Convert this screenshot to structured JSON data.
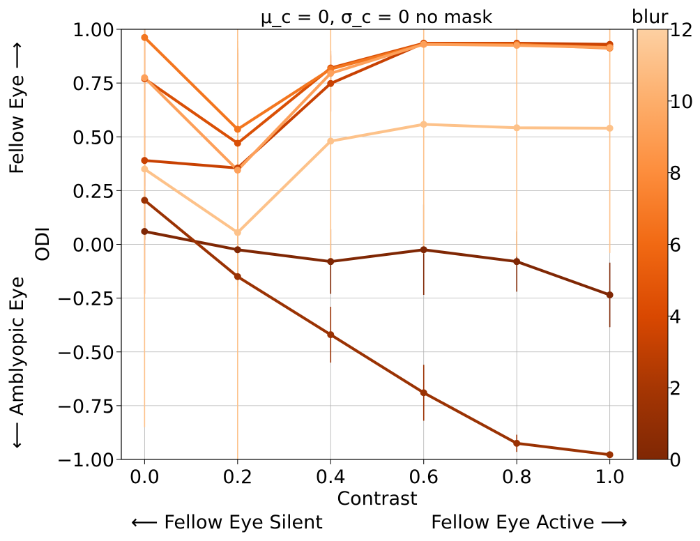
{
  "chart_data": {
    "type": "line",
    "title": "μ_c = 0, σ_c = 0 no mask",
    "xlabel": "Contrast",
    "ylabel": "ODI",
    "xlim": [
      -0.05,
      1.05
    ],
    "ylim": [
      -1.0,
      1.0
    ],
    "x": [
      0.0,
      0.2,
      0.4,
      0.6,
      0.8,
      1.0
    ],
    "xticks": [
      "0.0",
      "0.2",
      "0.4",
      "0.6",
      "0.8",
      "1.0"
    ],
    "yticks": [
      "1.00",
      "0.75",
      "0.50",
      "0.25",
      "0.00",
      "−0.25",
      "−0.50",
      "−0.75",
      "−1.00"
    ],
    "grid": true,
    "annotations": {
      "y_top": "Fellow Eye  ⟶",
      "y_bottom": "⟵  Amblyopic Eye",
      "x_left": "⟵  Fellow Eye Silent",
      "x_right": "Fellow Eye Active  ⟶"
    },
    "colorbar": {
      "label": "blur",
      "min": 0,
      "max": 12,
      "ticks": [
        "0",
        "2",
        "4",
        "6",
        "8",
        "10",
        "12"
      ],
      "colormap": [
        "#7f2704",
        "#a63603",
        "#d94801",
        "#f16913",
        "#fd8d3c",
        "#fdae6b",
        "#fdd0a2"
      ]
    },
    "series": [
      {
        "blur": 0,
        "color": "#7f2704",
        "values": [
          0.06,
          -0.025,
          -0.08,
          -0.025,
          -0.08,
          -0.235
        ],
        "errors": [
          0.04,
          0.13,
          0.15,
          0.21,
          0.14,
          0.15
        ]
      },
      {
        "blur": 1,
        "color": "#9a3203",
        "values": [
          0.205,
          -0.15,
          -0.42,
          -0.69,
          -0.925,
          -0.978
        ],
        "errors": [
          0.18,
          0.09,
          0.13,
          0.13,
          0.04,
          0.01
        ]
      },
      {
        "blur": 4,
        "color": "#c84102",
        "values": [
          0.39,
          0.355,
          0.748,
          0.935,
          0.935,
          0.93
        ],
        "errors": [
          0.62,
          0.55,
          0.13,
          0.01,
          0.01,
          0.01
        ]
      },
      {
        "blur": 5,
        "color": "#d94f05",
        "values": [
          0.77,
          0.47,
          0.82,
          0.935,
          0.93,
          0.92
        ],
        "errors": [
          0.5,
          0.42,
          0.08,
          0.01,
          0.01,
          0.01
        ]
      },
      {
        "blur": 7,
        "color": "#f3761f",
        "values": [
          0.962,
          0.535,
          0.815,
          0.93,
          0.93,
          0.912
        ],
        "errors": [
          0.3,
          0.38,
          0.07,
          0.01,
          0.01,
          0.01
        ]
      },
      {
        "blur": 10,
        "color": "#fda05a",
        "values": [
          0.775,
          0.345,
          0.795,
          0.93,
          0.925,
          0.915
        ],
        "errors": [
          0.6,
          0.6,
          0.06,
          0.01,
          0.01,
          0.01
        ]
      },
      {
        "blur": 12,
        "color": "#fdc28a",
        "values": [
          0.35,
          0.055,
          0.48,
          0.558,
          0.542,
          0.54
        ],
        "errors": [
          1.2,
          1.1,
          0.55,
          0.6,
          0.6,
          0.58
        ]
      }
    ]
  }
}
